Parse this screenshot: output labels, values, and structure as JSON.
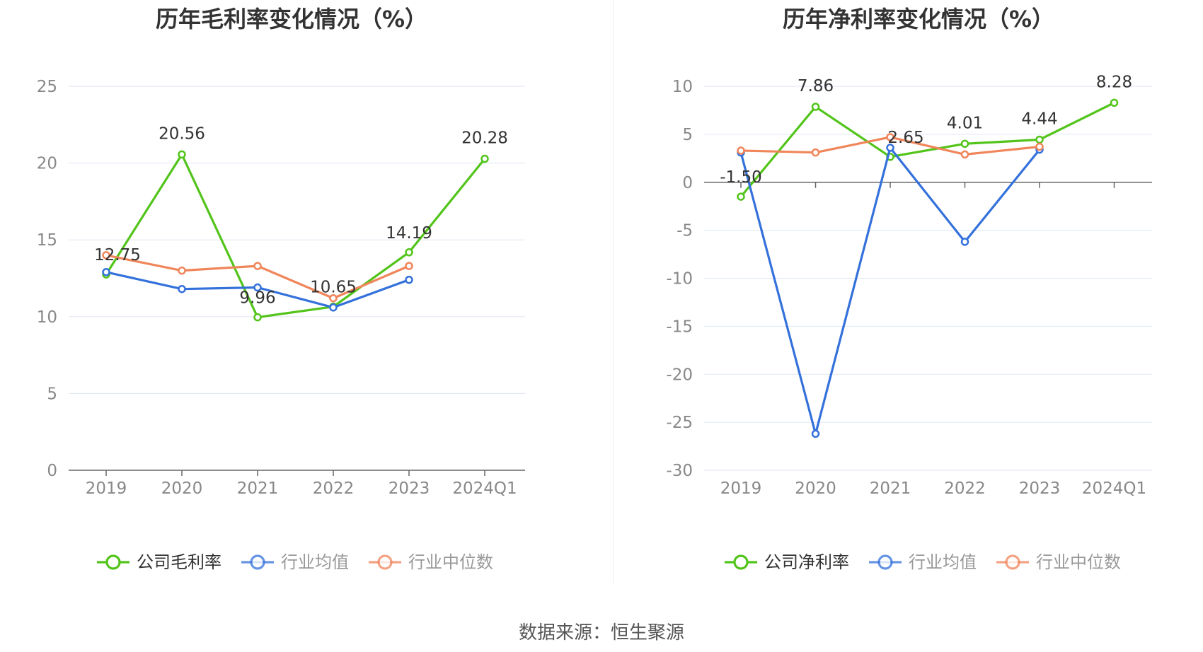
{
  "source_text": "数据来源：恒生聚源",
  "colors": {
    "company": "#52c41a",
    "industry_avg": "#3471db",
    "industry_median": "#f0855a",
    "grid": "#dfe6f3",
    "axis": "#666666",
    "label": "#333333",
    "tick": "#888888"
  },
  "chart_data": [
    {
      "type": "line",
      "title": "历年毛利率变化情况（%）",
      "categories": [
        "2019",
        "2020",
        "2021",
        "2022",
        "2023",
        "2024Q1"
      ],
      "ylim": [
        0,
        25
      ],
      "yticks": [
        0,
        5,
        10,
        15,
        20,
        25
      ],
      "grid": true,
      "legend_position": "bottom",
      "series": [
        {
          "name": "公司毛利率",
          "key": "company",
          "values": [
            12.75,
            20.56,
            9.96,
            10.65,
            14.19,
            20.28
          ],
          "labels": [
            "12.75",
            "20.56",
            "9.96",
            "10.65",
            "14.19",
            "20.28"
          ]
        },
        {
          "name": "行业均值",
          "key": "industry_avg",
          "values": [
            12.9,
            11.8,
            11.9,
            10.6,
            12.4,
            null
          ]
        },
        {
          "name": "行业中位数",
          "key": "industry_median",
          "values": [
            14.0,
            13.0,
            13.3,
            11.2,
            13.3,
            null
          ]
        }
      ]
    },
    {
      "type": "line",
      "title": "历年净利率变化情况（%）",
      "categories": [
        "2019",
        "2020",
        "2021",
        "2022",
        "2023",
        "2024Q1"
      ],
      "ylim": [
        -30,
        10
      ],
      "yticks": [
        -30,
        -25,
        -20,
        -15,
        -10,
        -5,
        0,
        5,
        10
      ],
      "grid": true,
      "legend_position": "bottom",
      "series": [
        {
          "name": "公司净利率",
          "key": "company",
          "values": [
            -1.5,
            7.86,
            2.65,
            4.01,
            4.44,
            8.28
          ],
          "labels": [
            "-1.50",
            "7.86",
            "2.65",
            "4.01",
            "4.44",
            "8.28"
          ]
        },
        {
          "name": "行业均值",
          "key": "industry_avg",
          "values": [
            3.1,
            -26.2,
            3.6,
            -6.2,
            3.4,
            null
          ]
        },
        {
          "name": "行业中位数",
          "key": "industry_median",
          "values": [
            3.3,
            3.1,
            4.7,
            2.9,
            3.7,
            null
          ]
        }
      ]
    }
  ]
}
